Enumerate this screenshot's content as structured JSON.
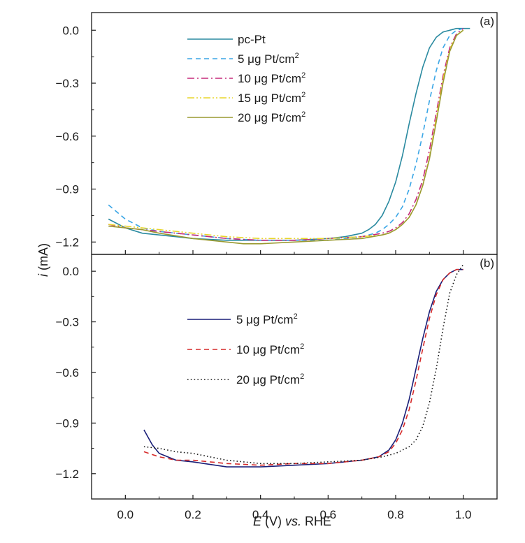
{
  "chart_data": {
    "type": "line",
    "xlabel": {
      "sym": "E",
      "mid": " (V) ",
      "ital": "vs.",
      "tail": " RHE"
    },
    "ylabel": {
      "sym": "i",
      "tail": " (mA)"
    },
    "xlim": [
      -0.1,
      1.1
    ],
    "xticks": [
      0.0,
      0.2,
      0.4,
      0.6,
      0.8,
      1.0
    ],
    "xtick_labels": [
      "0.0",
      "0.2",
      "0.4",
      "0.6",
      "0.8",
      "1.0"
    ],
    "panels": [
      {
        "tag": "(a)",
        "ylim": [
          -1.27,
          0.1
        ],
        "yticks": [
          0.0,
          -0.3,
          -0.6,
          -0.9,
          -1.2
        ],
        "ytick_labels": [
          "0.0",
          "−0.3",
          "−0.6",
          "−0.9",
          "−1.2"
        ],
        "series": [
          {
            "id": "pc-pt",
            "label": {
              "pre": "pc-Pt",
              "unit": "",
              "sup": ""
            },
            "color": "#2a8aa0",
            "style": "solid",
            "x": [
              -0.05,
              0.0,
              0.05,
              0.1,
              0.15,
              0.2,
              0.3,
              0.4,
              0.5,
              0.6,
              0.65,
              0.7,
              0.72,
              0.74,
              0.76,
              0.78,
              0.8,
              0.82,
              0.84,
              0.86,
              0.88,
              0.9,
              0.92,
              0.94,
              0.96,
              0.98,
              1.0,
              1.02
            ],
            "y": [
              -1.07,
              -1.12,
              -1.15,
              -1.16,
              -1.17,
              -1.18,
              -1.19,
              -1.19,
              -1.19,
              -1.18,
              -1.17,
              -1.15,
              -1.13,
              -1.1,
              -1.05,
              -0.97,
              -0.86,
              -0.71,
              -0.53,
              -0.36,
              -0.21,
              -0.1,
              -0.04,
              -0.01,
              0.0,
              0.01,
              0.01,
              0.01
            ]
          },
          {
            "id": "pt-5",
            "label": {
              "pre": "5 ",
              "unit": "μg Pt/cm",
              "sup": "2"
            },
            "color": "#3aa6e6",
            "style": "dashed",
            "x": [
              -0.05,
              0.0,
              0.05,
              0.1,
              0.2,
              0.3,
              0.4,
              0.5,
              0.6,
              0.7,
              0.74,
              0.76,
              0.78,
              0.8,
              0.82,
              0.84,
              0.86,
              0.88,
              0.9,
              0.92,
              0.94,
              0.96,
              0.98,
              1.0
            ],
            "y": [
              -0.99,
              -1.07,
              -1.12,
              -1.14,
              -1.16,
              -1.18,
              -1.19,
              -1.19,
              -1.19,
              -1.17,
              -1.15,
              -1.13,
              -1.1,
              -1.06,
              -1.0,
              -0.9,
              -0.76,
              -0.59,
              -0.4,
              -0.23,
              -0.1,
              -0.03,
              0.0,
              0.01
            ]
          },
          {
            "id": "pt-10",
            "label": {
              "pre": "10 ",
              "unit": "μg Pt/cm",
              "sup": "2"
            },
            "color": "#c62a7a",
            "style": "dashdot",
            "x": [
              -0.05,
              0.0,
              0.05,
              0.1,
              0.2,
              0.3,
              0.4,
              0.5,
              0.6,
              0.7,
              0.76,
              0.78,
              0.8,
              0.82,
              0.84,
              0.86,
              0.88,
              0.9,
              0.92,
              0.94,
              0.96,
              0.98,
              1.0
            ],
            "y": [
              -1.1,
              -1.12,
              -1.13,
              -1.14,
              -1.16,
              -1.18,
              -1.19,
              -1.19,
              -1.18,
              -1.17,
              -1.15,
              -1.14,
              -1.12,
              -1.09,
              -1.04,
              -0.96,
              -0.85,
              -0.68,
              -0.47,
              -0.26,
              -0.1,
              -0.02,
              0.01
            ]
          },
          {
            "id": "pt-15",
            "label": {
              "pre": "15 ",
              "unit": "μg Pt/cm",
              "sup": "2"
            },
            "color": "#e8d62a",
            "style": "dashdotdot",
            "x": [
              -0.05,
              0.0,
              0.05,
              0.1,
              0.2,
              0.3,
              0.4,
              0.5,
              0.6,
              0.7,
              0.76,
              0.78,
              0.8,
              0.82,
              0.84,
              0.86,
              0.88,
              0.9,
              0.92,
              0.94,
              0.96,
              0.98,
              1.0
            ],
            "y": [
              -1.1,
              -1.11,
              -1.12,
              -1.13,
              -1.15,
              -1.17,
              -1.18,
              -1.18,
              -1.18,
              -1.17,
              -1.16,
              -1.15,
              -1.13,
              -1.1,
              -1.06,
              -0.99,
              -0.88,
              -0.72,
              -0.5,
              -0.28,
              -0.11,
              -0.03,
              0.0
            ]
          },
          {
            "id": "pt-20",
            "label": {
              "pre": "20 ",
              "unit": "μg Pt/cm",
              "sup": "2"
            },
            "color": "#9a9a30",
            "style": "solid",
            "x": [
              -0.05,
              0.0,
              0.05,
              0.1,
              0.2,
              0.3,
              0.35,
              0.4,
              0.5,
              0.6,
              0.7,
              0.76,
              0.78,
              0.8,
              0.82,
              0.84,
              0.86,
              0.88,
              0.9,
              0.92,
              0.94,
              0.96,
              0.98,
              1.0
            ],
            "y": [
              -1.11,
              -1.12,
              -1.13,
              -1.15,
              -1.18,
              -1.2,
              -1.21,
              -1.21,
              -1.2,
              -1.19,
              -1.18,
              -1.16,
              -1.15,
              -1.13,
              -1.1,
              -1.06,
              -0.99,
              -0.88,
              -0.73,
              -0.52,
              -0.3,
              -0.12,
              -0.03,
              0.0
            ]
          }
        ]
      },
      {
        "tag": "(b)",
        "ylim": [
          -1.35,
          0.1
        ],
        "yticks": [
          0.0,
          -0.3,
          -0.6,
          -0.9,
          -1.2
        ],
        "ytick_labels": [
          "0.0",
          "−0.3",
          "−0.6",
          "−0.9",
          "−1.2"
        ],
        "series": [
          {
            "id": "b-pt-5",
            "label": {
              "pre": "5 ",
              "unit": "μg Pt/cm",
              "sup": "2"
            },
            "color": "#1a1f78",
            "style": "solid",
            "x": [
              0.055,
              0.08,
              0.1,
              0.15,
              0.2,
              0.3,
              0.4,
              0.5,
              0.6,
              0.7,
              0.75,
              0.78,
              0.8,
              0.82,
              0.84,
              0.86,
              0.88,
              0.9,
              0.92,
              0.94,
              0.96,
              0.98,
              1.0
            ],
            "y": [
              -0.94,
              -1.03,
              -1.08,
              -1.12,
              -1.13,
              -1.16,
              -1.16,
              -1.15,
              -1.14,
              -1.12,
              -1.1,
              -1.06,
              -1.0,
              -0.9,
              -0.76,
              -0.58,
              -0.4,
              -0.24,
              -0.12,
              -0.05,
              -0.01,
              0.01,
              0.01
            ]
          },
          {
            "id": "b-pt-10",
            "label": {
              "pre": "10 ",
              "unit": "μg Pt/cm",
              "sup": "2"
            },
            "color": "#d62a2a",
            "style": "dashed",
            "x": [
              0.055,
              0.1,
              0.15,
              0.2,
              0.3,
              0.4,
              0.5,
              0.6,
              0.7,
              0.75,
              0.78,
              0.8,
              0.82,
              0.84,
              0.86,
              0.88,
              0.9,
              0.92,
              0.94,
              0.96,
              0.98,
              1.0
            ],
            "y": [
              -1.07,
              -1.1,
              -1.12,
              -1.12,
              -1.14,
              -1.15,
              -1.14,
              -1.14,
              -1.12,
              -1.1,
              -1.07,
              -1.02,
              -0.94,
              -0.82,
              -0.65,
              -0.46,
              -0.28,
              -0.14,
              -0.05,
              -0.01,
              0.01,
              0.01
            ]
          },
          {
            "id": "b-pt-20",
            "label": {
              "pre": "20 ",
              "unit": "μg Pt/cm",
              "sup": "2"
            },
            "color": "#1a1a1a",
            "style": "dotted",
            "x": [
              0.055,
              0.1,
              0.15,
              0.2,
              0.25,
              0.3,
              0.35,
              0.4,
              0.5,
              0.6,
              0.7,
              0.76,
              0.8,
              0.84,
              0.86,
              0.88,
              0.9,
              0.92,
              0.94,
              0.96,
              0.98,
              1.0
            ],
            "y": [
              -1.04,
              -1.05,
              -1.07,
              -1.08,
              -1.1,
              -1.12,
              -1.13,
              -1.14,
              -1.14,
              -1.13,
              -1.12,
              -1.1,
              -1.08,
              -1.04,
              -1.0,
              -0.92,
              -0.78,
              -0.58,
              -0.34,
              -0.13,
              -0.02,
              0.04
            ]
          }
        ]
      }
    ]
  }
}
